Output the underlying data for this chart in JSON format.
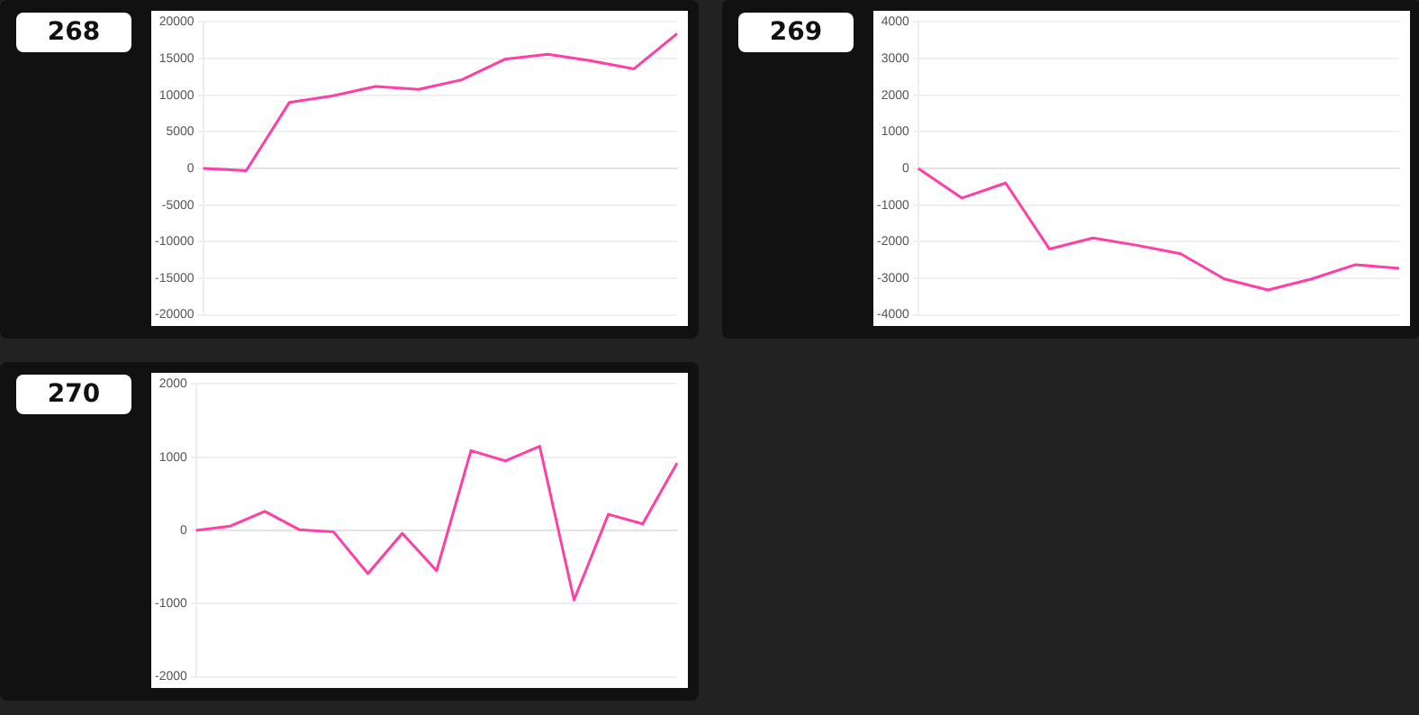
{
  "chart_data": [
    {
      "type": "line",
      "title": "268",
      "categories": [
        null,
        null,
        null,
        null,
        null,
        null,
        null,
        null,
        null,
        null,
        null,
        null
      ],
      "values": [
        0,
        -300,
        9000,
        9900,
        11200,
        10800,
        12100,
        14900,
        15600,
        14700,
        13600,
        18400
      ],
      "color": "#ff3fa4",
      "ylim": [
        -20000,
        20000
      ],
      "yticks": [
        -20000,
        -15000,
        -10000,
        -5000,
        0,
        5000,
        10000,
        15000,
        20000
      ],
      "grid": "y"
    },
    {
      "type": "line",
      "title": "269",
      "categories": [
        null,
        null,
        null,
        null,
        null,
        null,
        null,
        null,
        null,
        null,
        null,
        null
      ],
      "values": [
        0,
        -810,
        -400,
        -2200,
        -1900,
        -2100,
        -2330,
        -3020,
        -3320,
        -3020,
        -2630,
        -2730
      ],
      "color": "#ff3fa4",
      "ylim": [
        -4000,
        4000
      ],
      "yticks": [
        -4000,
        -3000,
        -2000,
        -1000,
        0,
        1000,
        2000,
        3000,
        4000
      ],
      "grid": "y"
    },
    {
      "type": "line",
      "title": "270",
      "categories": [
        null,
        null,
        null,
        null,
        null,
        null,
        null,
        null,
        null,
        null,
        null,
        null,
        null,
        null,
        null
      ],
      "values": [
        0,
        60,
        260,
        10,
        -20,
        -590,
        -40,
        -550,
        1090,
        950,
        1150,
        -950,
        220,
        90,
        920
      ],
      "color": "#ff3fa4",
      "ylim": [
        -2000,
        2000
      ],
      "yticks": [
        -2000,
        -1000,
        0,
        1000,
        2000
      ],
      "grid": "y"
    }
  ]
}
